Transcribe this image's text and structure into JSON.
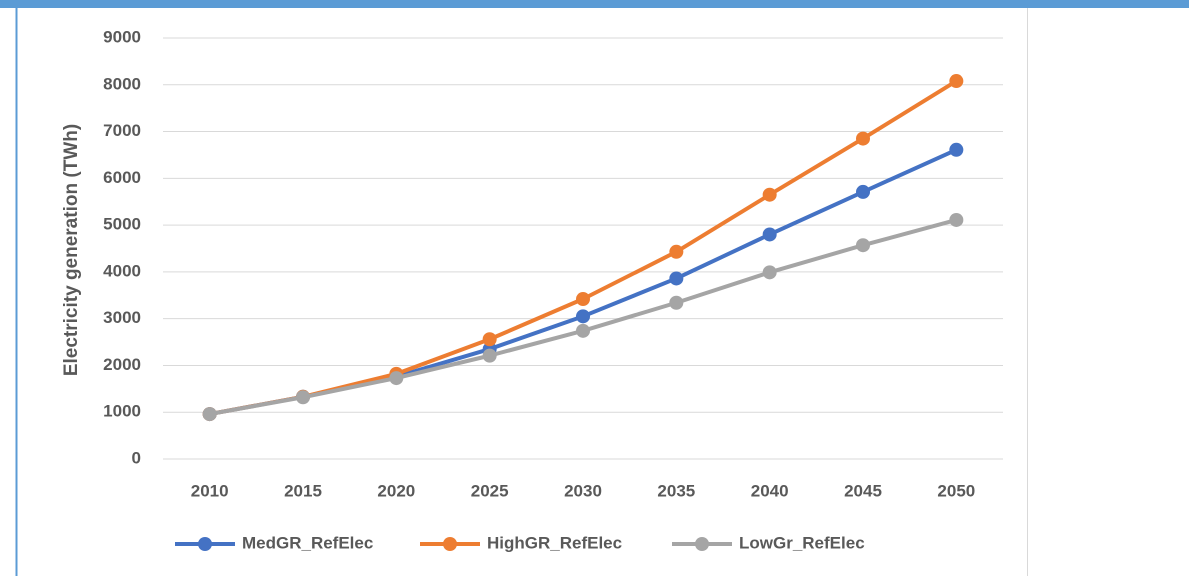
{
  "chart_data": {
    "type": "line",
    "y_label": "Electricity generation (TWh)",
    "categories": [
      "2010",
      "2015",
      "2020",
      "2025",
      "2030",
      "2035",
      "2040",
      "2045",
      "2050"
    ],
    "series": [
      {
        "name": "MedGR_RefElec",
        "color": "#4472c4",
        "values": [
          960,
          1330,
          1760,
          2350,
          3050,
          3860,
          4800,
          5710,
          6610
        ]
      },
      {
        "name": "HighGR_RefElec",
        "color": "#ed7d31",
        "values": [
          960,
          1330,
          1820,
          2560,
          3420,
          4430,
          5650,
          6850,
          8080
        ]
      },
      {
        "name": "LowGr_RefElec",
        "color": "#a5a5a5",
        "values": [
          960,
          1320,
          1730,
          2210,
          2740,
          3340,
          3990,
          4570,
          5110
        ]
      }
    ],
    "ylim": [
      0,
      9000
    ],
    "yticks": [
      0,
      1000,
      2000,
      3000,
      4000,
      5000,
      6000,
      7000,
      8000,
      9000
    ],
    "grid": true,
    "legend": "bottom"
  }
}
